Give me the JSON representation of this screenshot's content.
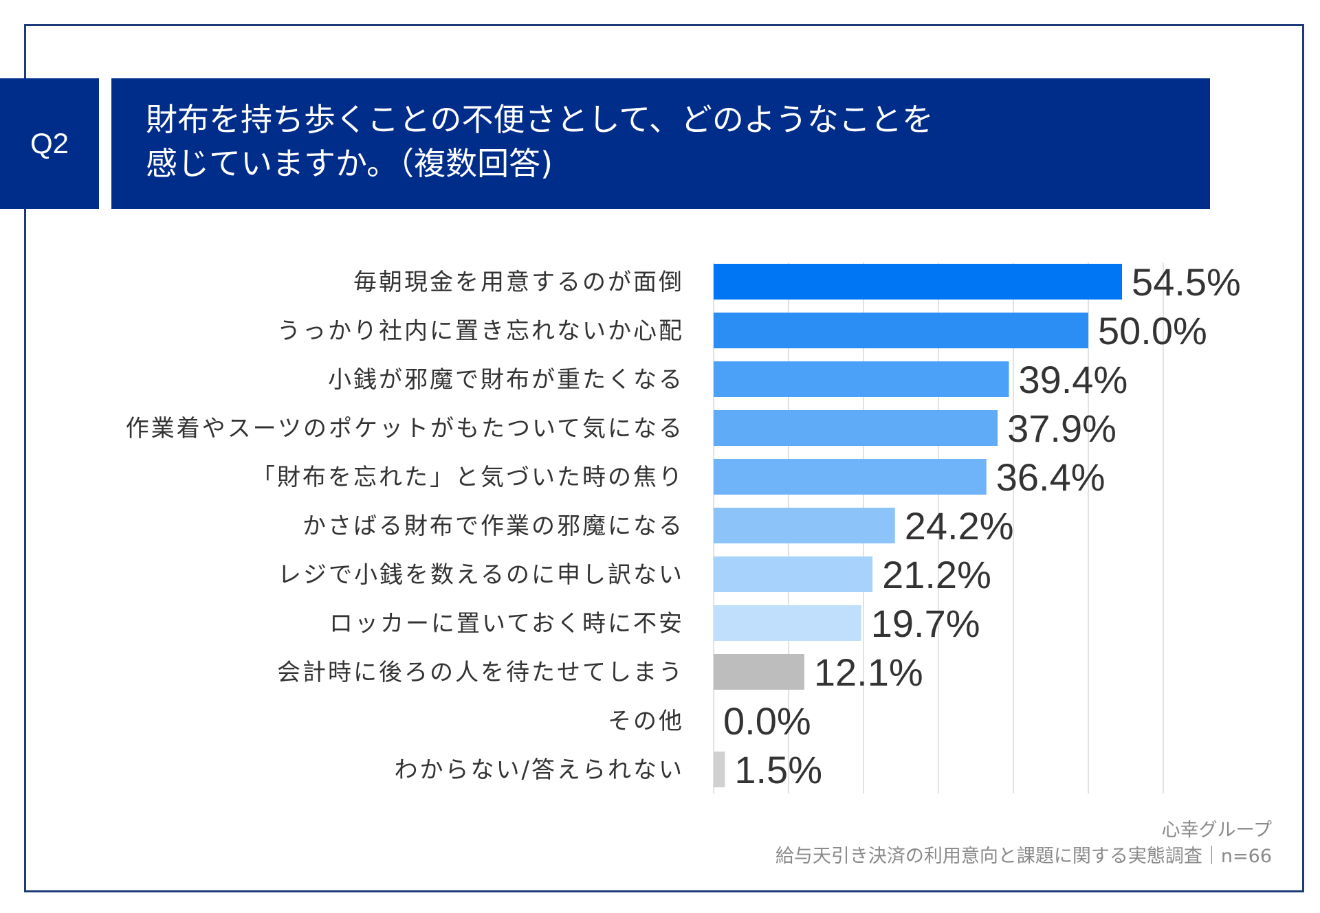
{
  "question_tag": "Q2",
  "title": {
    "line1": "財布を持ち歩くことの不便さとして、どのようなことを",
    "line2": "感じていますか。（複数回答)"
  },
  "footer": {
    "org": "心幸グループ",
    "survey": "給与天引き決済の利用意向と課題に関する実態調査｜n=66"
  },
  "chart_data": {
    "type": "bar",
    "orientation": "horizontal",
    "title": "財布を持ち歩くことの不便さとして、どのようなことを感じていますか。（複数回答)",
    "categories": [
      "毎朝現金を用意するのが面倒",
      "うっかり社内に置き忘れないか心配",
      "小銭が邪魔で財布が重たくなる",
      "作業着やスーツのポケットがもたついて気になる",
      "「財布を忘れた」と気づいた時の焦り",
      "かさばる財布で作業の邪魔になる",
      "レジで小銭を数えるのに申し訳ない",
      "ロッカーに置いておく時に不安",
      "会計時に後ろの人を待たせてしまう",
      "その他",
      "わからない/答えられない"
    ],
    "values": [
      54.5,
      50.0,
      39.4,
      37.9,
      36.4,
      24.2,
      21.2,
      19.7,
      12.1,
      0.0,
      1.5
    ],
    "value_labels": [
      "54.5%",
      "50.0%",
      "39.4%",
      "37.9%",
      "36.4%",
      "24.2%",
      "21.2%",
      "19.7%",
      "12.1%",
      "0.0%",
      "1.5%"
    ],
    "colors": [
      "#0076f5",
      "#2b8ef5",
      "#4ba0f7",
      "#5fabf8",
      "#6fb4f9",
      "#8cc4fa",
      "#a6d2fb",
      "#bfdffc",
      "#bdbdbd",
      "#c8c8c8",
      "#d0d0d0"
    ],
    "xlim": [
      0,
      60
    ],
    "gridlines": [
      0,
      10,
      20,
      30,
      40,
      50,
      60
    ],
    "grid_color": "#d9d9d9",
    "label_color": "#333333",
    "unit": "%"
  }
}
